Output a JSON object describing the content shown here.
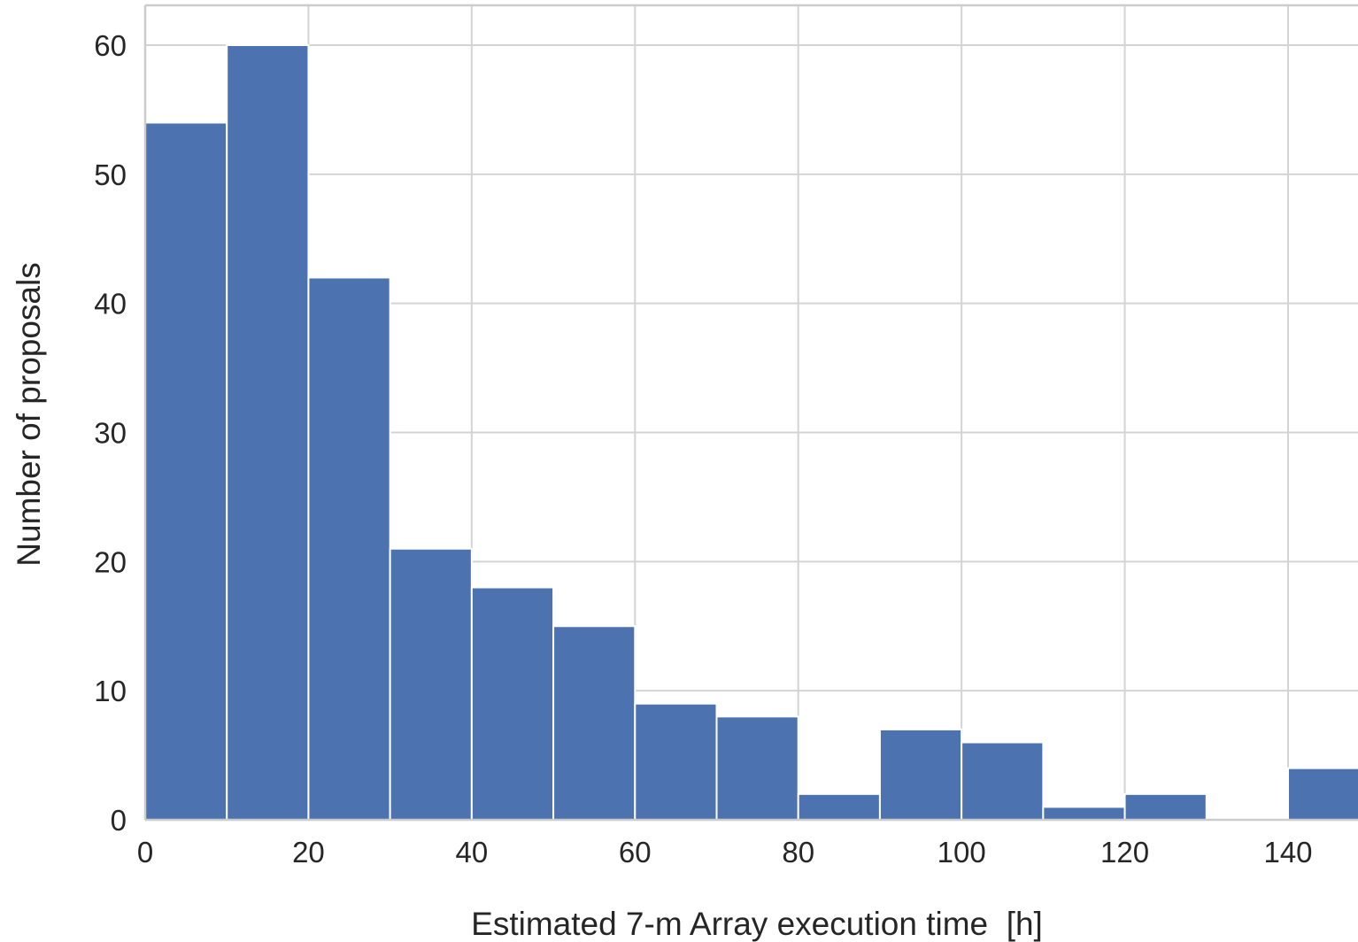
{
  "chart_data": {
    "type": "bar",
    "subtype": "histogram",
    "bin_width": 10,
    "bins": [
      {
        "x0": 0,
        "x1": 10,
        "count": 54
      },
      {
        "x0": 10,
        "x1": 20,
        "count": 60
      },
      {
        "x0": 20,
        "x1": 30,
        "count": 42
      },
      {
        "x0": 30,
        "x1": 40,
        "count": 21
      },
      {
        "x0": 40,
        "x1": 50,
        "count": 18
      },
      {
        "x0": 50,
        "x1": 60,
        "count": 15
      },
      {
        "x0": 60,
        "x1": 70,
        "count": 9
      },
      {
        "x0": 70,
        "x1": 80,
        "count": 8
      },
      {
        "x0": 80,
        "x1": 90,
        "count": 2
      },
      {
        "x0": 90,
        "x1": 100,
        "count": 7
      },
      {
        "x0": 100,
        "x1": 110,
        "count": 6
      },
      {
        "x0": 110,
        "x1": 120,
        "count": 1
      },
      {
        "x0": 120,
        "x1": 130,
        "count": 2
      },
      {
        "x0": 130,
        "x1": 140,
        "count": 0
      },
      {
        "x0": 140,
        "x1": 150,
        "count": 4
      }
    ],
    "xlabel": "Estimated 7-m Array execution time  [h]",
    "ylabel": "Number of proposals",
    "xlim": [
      0,
      150
    ],
    "ylim": [
      0,
      63
    ],
    "xticks": [
      0,
      20,
      40,
      60,
      80,
      100,
      120,
      140
    ],
    "yticks": [
      0,
      10,
      20,
      30,
      40,
      50,
      60
    ],
    "grid": true,
    "colors": {
      "bar": "#4c72b0",
      "grid": "#d4d4d4",
      "frame": "#cccccc",
      "text": "#262626"
    }
  }
}
